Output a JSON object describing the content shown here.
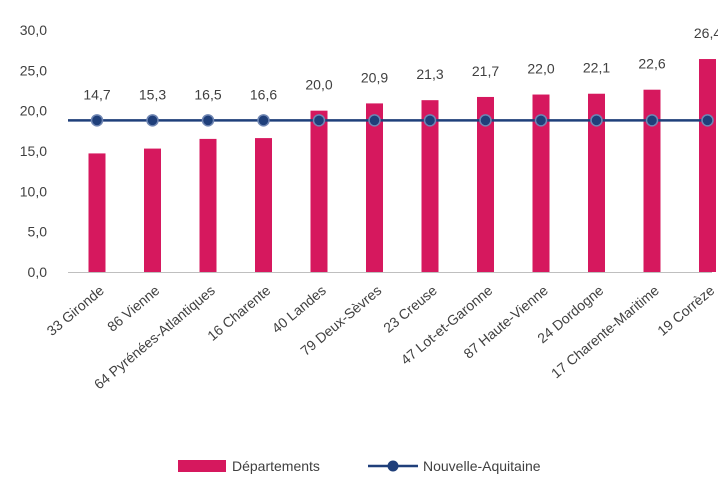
{
  "chart_data": {
    "type": "bar",
    "categories": [
      "33 Gironde",
      "86 Vienne",
      "64 Pyrénées-Atlantiques",
      "16 Charente",
      "40 Landes",
      "79 Deux-Sèvres",
      "23 Creuse",
      "47 Lot-et-Garonne",
      "87 Haute-Vienne",
      "24 Dordogne",
      "17 Charente-Maritime",
      "19 Corrèze"
    ],
    "series": [
      {
        "name": "Départements",
        "type": "bar",
        "color": "#d6185e",
        "values": [
          14.7,
          15.3,
          16.5,
          16.6,
          20.0,
          20.9,
          21.3,
          21.7,
          22.0,
          22.1,
          22.6,
          26.4
        ],
        "labels": [
          "14,7",
          "15,3",
          "16,5",
          "16,6",
          "20,0",
          "20,9",
          "21,3",
          "21,7",
          "22,0",
          "22,1",
          "22,6",
          "26,4"
        ]
      },
      {
        "name": "Nouvelle-Aquitaine",
        "type": "line",
        "color": "#1f3f7a",
        "values": [
          18.8,
          18.8,
          18.8,
          18.8,
          18.8,
          18.8,
          18.8,
          18.8,
          18.8,
          18.8,
          18.8,
          18.8
        ]
      }
    ],
    "y_ticks": [
      {
        "value": 0,
        "label": "0,0"
      },
      {
        "value": 5,
        "label": "5,0"
      },
      {
        "value": 10,
        "label": "10,0"
      },
      {
        "value": 15,
        "label": "15,0"
      },
      {
        "value": 20,
        "label": "20,0"
      },
      {
        "value": 25,
        "label": "25,0"
      },
      {
        "value": 30,
        "label": "30,0"
      }
    ],
    "ylim": [
      0,
      30
    ],
    "grid": false,
    "legend_position": "bottom"
  }
}
